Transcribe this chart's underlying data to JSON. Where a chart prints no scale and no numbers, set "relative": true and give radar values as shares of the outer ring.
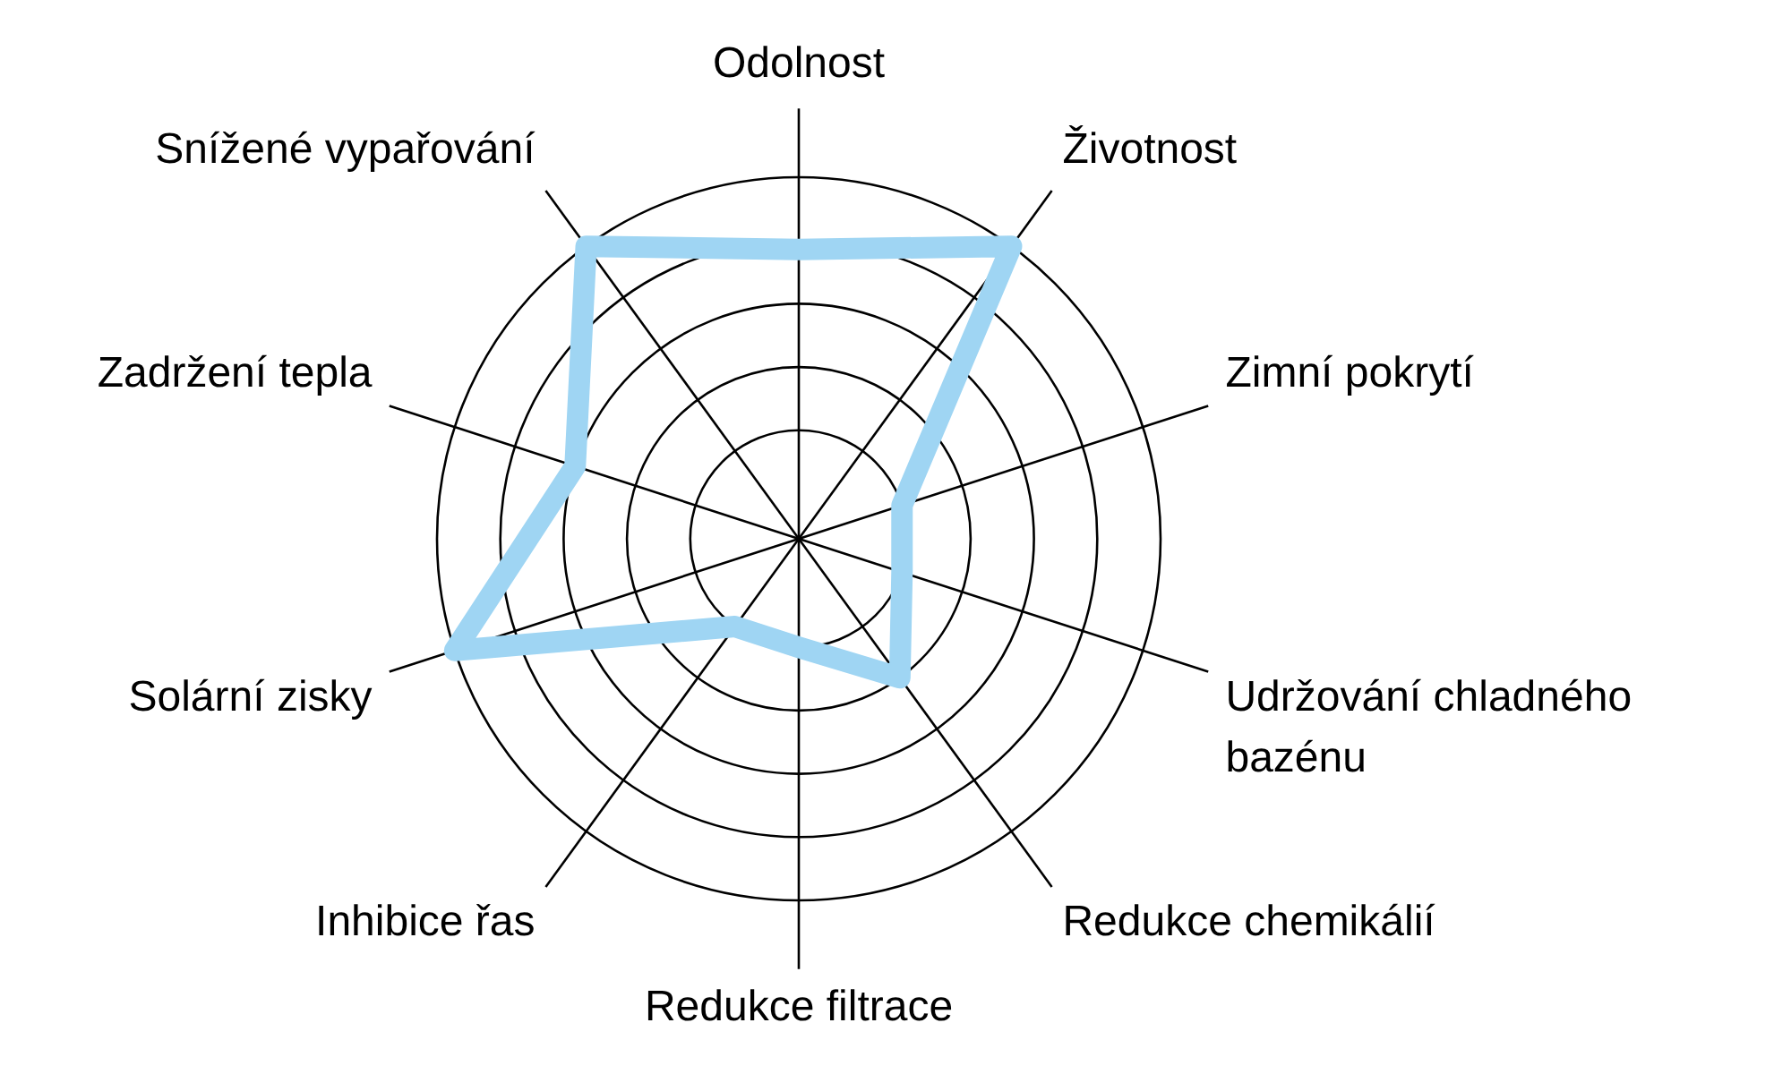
{
  "chart_data": {
    "type": "radar",
    "categories": [
      "Odolnost",
      "Životnost",
      "Zimní pokrytí",
      "Udržování chladného bazénu",
      "Redukce chemikálií",
      "Redukce filtrace",
      "Inhibice řas",
      "Solární zisky",
      "Zadržení tepla",
      "Snížené vypařování"
    ],
    "series": [
      {
        "color": "#9fd5f3",
        "values": [
          0.8,
          1,
          0.3,
          0.3,
          0.475,
          0.3,
          0.3,
          1,
          0.65,
          1
        ]
      }
    ],
    "relative": true,
    "grid": true
  }
}
